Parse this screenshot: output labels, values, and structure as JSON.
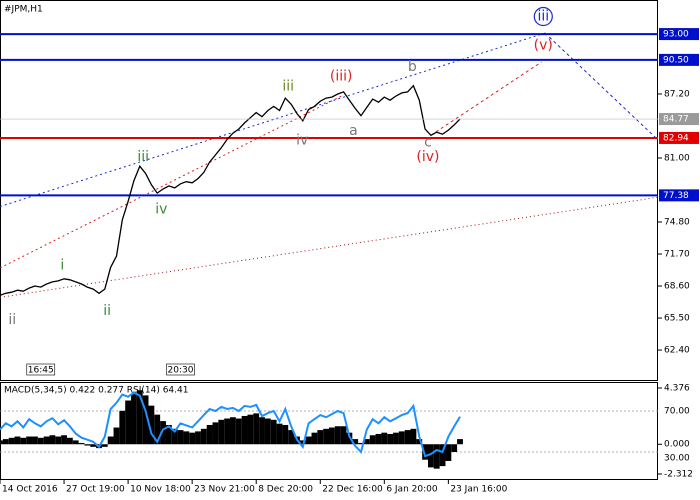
{
  "chart_data": {
    "type": "line",
    "title": "#JPM,H1",
    "xlim": [
      0,
      113
    ],
    "ylim": [
      59.5,
      96.3
    ],
    "xticks": [
      {
        "value": 0,
        "label": "14 Oct 2016"
      },
      {
        "value": 11,
        "label": "27 Oct 19:00"
      },
      {
        "value": 22,
        "label": "10 Nov 18:00"
      },
      {
        "value": 33,
        "label": "23 Nov 21:00"
      },
      {
        "value": 44,
        "label": "8 Dec 20:00"
      },
      {
        "value": 55,
        "label": "22 Dec 16:00"
      },
      {
        "value": 66,
        "label": "6 Jan 20:00"
      },
      {
        "value": 77,
        "label": "23 Jan 16:00"
      }
    ],
    "yticks": [
      {
        "value": 62.4,
        "label": "62.40"
      },
      {
        "value": 65.5,
        "label": "65.50"
      },
      {
        "value": 68.6,
        "label": "68.60"
      },
      {
        "value": 71.7,
        "label": "71.70"
      },
      {
        "value": 74.8,
        "label": "74.80"
      },
      {
        "value": 81,
        "label": "81.00"
      },
      {
        "value": 87.2,
        "label": "87.20"
      }
    ],
    "series": [
      {
        "name": "JPM",
        "color": "#000000",
        "values": [
          67.7,
          67.9,
          68.0,
          68.2,
          68.1,
          68.4,
          68.6,
          68.5,
          68.8,
          69.0,
          69.1,
          69.3,
          69.2,
          69.0,
          68.8,
          68.5,
          68.3,
          67.9,
          68.3,
          70.4,
          71.5,
          75.0,
          76.8,
          78.8,
          80.2,
          79.5,
          78.4,
          77.6,
          78.0,
          78.3,
          78.1,
          78.5,
          78.7,
          78.6,
          79.0,
          79.6,
          80.6,
          81.3,
          82.0,
          82.8,
          83.4,
          83.8,
          84.4,
          84.9,
          85.4,
          85.0,
          85.6,
          86.0,
          85.6,
          86.8,
          86.2,
          85.3,
          84.6,
          85.7,
          86.0,
          86.5,
          86.8,
          86.9,
          87.2,
          87.4,
          86.6,
          85.8,
          85.1,
          85.9,
          86.7,
          86.4,
          86.9,
          86.6,
          87.0,
          87.3,
          87.4,
          88.0,
          86.6,
          83.8,
          83.2,
          83.5,
          83.3,
          83.7,
          84.2,
          84.77
        ]
      }
    ],
    "levels": [
      {
        "value": 93,
        "label": "93.00",
        "color": "#0010c8"
      },
      {
        "value": 90.5,
        "label": "90.50",
        "color": "#0010c8"
      },
      {
        "value": 82.94,
        "label": "82.94",
        "color": "#e00000"
      },
      {
        "value": 77.38,
        "label": "77.38",
        "color": "#0010c8"
      }
    ],
    "trend_lines": [
      {
        "x": [
          0,
          93.6
        ],
        "y": [
          76.3,
          93.1
        ],
        "color": "#1a2ad0",
        "dash": "2,3"
      },
      {
        "x": [
          93.6,
          113
        ],
        "y": [
          93.1,
          82.75
        ],
        "color": "#1a2ad0",
        "dash": "3,3"
      },
      {
        "x": [
          0,
          59
        ],
        "y": [
          70.35,
          87.1
        ],
        "color": "#e02020",
        "dash": "2,3"
      },
      {
        "x": [
          74,
          93
        ],
        "y": [
          83.2,
          90.3
        ],
        "color": "#e02020",
        "dash": "3,3"
      },
      {
        "x": [
          0,
          113
        ],
        "y": [
          67.5,
          77.2
        ],
        "color": "#a01010",
        "dash": "1,3"
      }
    ],
    "wave_labels": [
      {
        "text": "ii",
        "x": 2.1,
        "y": 65.3,
        "color": "#777777"
      },
      {
        "text": "i",
        "x": 10.7,
        "y": 70.6,
        "color": "#3a8a3a"
      },
      {
        "text": "ii",
        "x": 18.4,
        "y": 66.2,
        "color": "#3a8a3a"
      },
      {
        "text": "iii",
        "x": 24.6,
        "y": 81.1,
        "color": "#3a8a3a"
      },
      {
        "text": "iv",
        "x": 27.7,
        "y": 76.0,
        "color": "#3a8a3a"
      },
      {
        "text": "iii",
        "x": 49.5,
        "y": 87.9,
        "color": "#6a8a2a"
      },
      {
        "text": "iv",
        "x": 51.9,
        "y": 82.7,
        "color": "#777777"
      },
      {
        "text": "(iii)",
        "x": 58.6,
        "y": 88.9,
        "color": "#e02020"
      },
      {
        "text": "a",
        "x": 60.7,
        "y": 83.6,
        "color": "#777777"
      },
      {
        "text": "b",
        "x": 70.8,
        "y": 89.8,
        "color": "#777777"
      },
      {
        "text": "c",
        "x": 73.5,
        "y": 82.5,
        "color": "#777777"
      },
      {
        "text": "(iv)",
        "x": 73.5,
        "y": 81.1,
        "color": "#e02020"
      },
      {
        "text": "(v)",
        "x": 93.3,
        "y": 91.9,
        "color": "#e02020"
      },
      {
        "text": "iii",
        "x": 93.3,
        "y": 94.7,
        "color": "#1a2ad0",
        "circle": true
      }
    ],
    "time_boxes": [
      {
        "text": "16:45",
        "x": 7
      },
      {
        "text": "20:30",
        "x": 31
      }
    ],
    "indicator": {
      "title": "MACD(5,34,5) 0.422 0.277 RSI(14) 64.41",
      "ylim": [
        -2.78,
        4.84
      ],
      "yticks": [
        4.376,
        {
          "value": 0,
          "label": "0.000"
        },
        -2.312
      ],
      "rsi_ylim": [
        2.7,
        98.3
      ],
      "rsi_ticks": [
        {
          "value": 70,
          "label": "70.00"
        },
        {
          "value": 30,
          "label": "30.00"
        }
      ],
      "macd": [
        0.3,
        0.4,
        0.5,
        0.6,
        0.5,
        0.6,
        0.6,
        0.5,
        0.6,
        0.7,
        0.6,
        0.7,
        0.5,
        0.3,
        0.1,
        -0.1,
        -0.2,
        -0.3,
        -0.2,
        0.6,
        1.3,
        2.6,
        3.4,
        3.9,
        4.2,
        3.8,
        3.0,
        2.3,
        1.8,
        1.5,
        1.2,
        1.1,
        1.0,
        0.9,
        1.0,
        1.2,
        1.5,
        1.7,
        1.9,
        2.0,
        2.1,
        2.0,
        2.2,
        2.3,
        2.4,
        2.1,
        2.0,
        1.9,
        1.6,
        1.5,
        1.1,
        0.6,
        0.3,
        0.6,
        0.9,
        1.1,
        1.2,
        1.3,
        1.4,
        1.4,
        0.9,
        0.4,
        0.1,
        0.4,
        0.7,
        0.8,
        0.9,
        0.8,
        0.9,
        1.0,
        1.1,
        1.2,
        0.4,
        -1.2,
        -1.8,
        -1.9,
        -1.7,
        -1.3,
        -0.6,
        0.4
      ],
      "rsi": [
        52,
        58,
        55,
        60,
        54,
        62,
        58,
        55,
        60,
        63,
        57,
        61,
        55,
        48,
        44,
        42,
        40,
        35,
        45,
        72,
        78,
        86,
        84,
        88,
        85,
        70,
        48,
        40,
        52,
        55,
        50,
        58,
        56,
        54,
        60,
        66,
        72,
        70,
        74,
        72,
        73,
        70,
        75,
        74,
        76,
        65,
        68,
        70,
        60,
        72,
        55,
        42,
        35,
        58,
        62,
        66,
        64,
        67,
        70,
        68,
        45,
        36,
        30,
        52,
        62,
        58,
        64,
        60,
        63,
        66,
        68,
        75,
        45,
        26,
        28,
        32,
        30,
        45,
        55,
        64.41
      ]
    }
  }
}
